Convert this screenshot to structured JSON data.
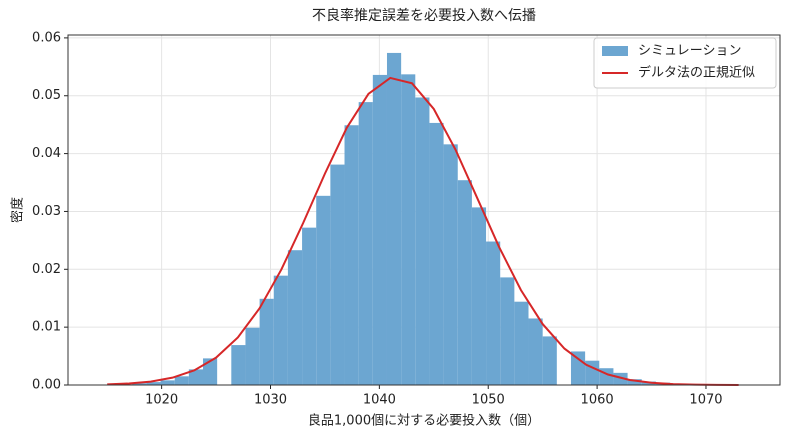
{
  "chart_data": {
    "type": "histogram",
    "title": "不良率推定誤差を必要投入数へ伝播",
    "xlabel": "良品1,000個に対する必要投入数（個）",
    "ylabel": "密度",
    "bins": [
      1016,
      1017.3,
      1018.6,
      1019.9,
      1021.2,
      1022.5,
      1023.8,
      1025.1,
      1026.4,
      1027.7,
      1029,
      1030.3,
      1031.6,
      1032.9,
      1034.2,
      1035.5,
      1036.8,
      1038.1,
      1039.4,
      1040.7,
      1042,
      1043.3,
      1044.6,
      1045.9,
      1047.2,
      1048.5,
      1049.8,
      1051.1,
      1052.4,
      1053.7,
      1055,
      1056.3,
      1057.6,
      1058.9,
      1060.2,
      1061.5,
      1062.8,
      1064.1,
      1065.4,
      1066.7,
      1068
    ],
    "series": [
      {
        "type": "histogram",
        "name": "シミュレーション",
        "color": "#6ca6d1",
        "values": [
          0.0001,
          0.0003,
          0.0005,
          0.0008,
          0.0015,
          0.0027,
          0.0046,
          0,
          0.0069,
          0.0099,
          0.0149,
          0.0189,
          0.0233,
          0.0272,
          0.0327,
          0.0381,
          0.0449,
          0.0489,
          0.0536,
          0.0574,
          0.0537,
          0.0497,
          0.0453,
          0.0416,
          0.0354,
          0.0307,
          0.0248,
          0.0186,
          0.0144,
          0.0115,
          0.0084,
          0,
          0.0058,
          0.0042,
          0.0029,
          0.0021,
          0.001,
          0.0006,
          0.0004,
          0.0002
        ]
      },
      {
        "type": "line",
        "name": "デルタ法の正規近似",
        "color": "#d62728",
        "x": [
          1015,
          1017,
          1019,
          1021,
          1023,
          1025,
          1027,
          1029,
          1031,
          1033,
          1035,
          1037,
          1039,
          1041,
          1043,
          1045,
          1047,
          1049,
          1051,
          1053,
          1055,
          1057,
          1059,
          1061,
          1063,
          1065,
          1067,
          1069,
          1071,
          1073
        ],
        "values": [
          0.0001,
          0.00026,
          0.00059,
          0.00127,
          0.00254,
          0.00473,
          0.00821,
          0.01327,
          0.01997,
          0.028,
          0.03654,
          0.04444,
          0.05033,
          0.05308,
          0.05215,
          0.04771,
          0.04066,
          0.03227,
          0.02385,
          0.01642,
          0.01053,
          0.00629,
          0.0035,
          0.00181,
          0.00087,
          0.00039,
          0.00016,
          6e-05,
          2e-05,
          1e-05
        ]
      }
    ],
    "xlim": [
      1011.4,
      1076.8
    ],
    "ylim": [
      0,
      0.0605
    ],
    "xticks": [
      1020,
      1030,
      1040,
      1050,
      1060,
      1070
    ],
    "yticks": [
      {
        "value": 0,
        "label": "0.00"
      },
      0.01,
      0.02,
      0.03,
      0.04,
      0.05,
      0.06
    ],
    "grid": true,
    "legend": "upper right"
  }
}
